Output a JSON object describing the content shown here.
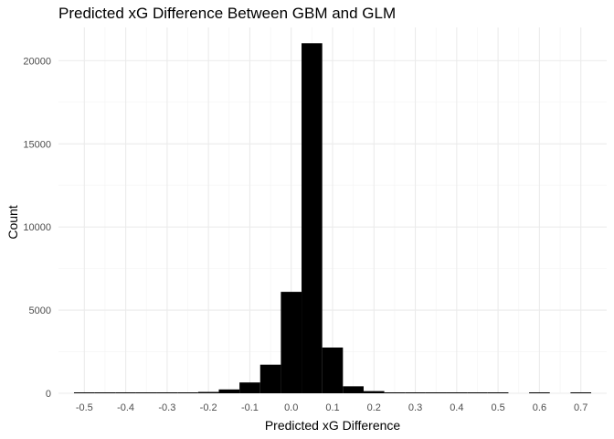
{
  "chart_data": {
    "type": "bar",
    "title": "Predicted xG Difference Between GBM and GLM",
    "xlabel": "Predicted xG Difference",
    "ylabel": "Count",
    "xlim": [
      -0.5625,
      0.7625
    ],
    "ylim": [
      0,
      22000
    ],
    "x_ticks": [
      -0.5,
      -0.4,
      -0.3,
      -0.2,
      -0.1,
      0.0,
      0.1,
      0.2,
      0.3,
      0.4,
      0.5,
      0.6,
      0.7
    ],
    "x_tick_labels": [
      "-0.5",
      "-0.4",
      "-0.3",
      "-0.2",
      "-0.1",
      "0.0",
      "0.1",
      "0.2",
      "0.3",
      "0.4",
      "0.5",
      "0.6",
      "0.7"
    ],
    "y_ticks": [
      0,
      5000,
      10000,
      15000,
      20000
    ],
    "y_tick_labels": [
      "0",
      "5000",
      "10000",
      "15000",
      "20000"
    ],
    "grid": true,
    "bin_width": 0.05,
    "bins": [
      {
        "x0": -0.525,
        "x1": -0.475,
        "count": 5
      },
      {
        "x0": -0.475,
        "x1": -0.425,
        "count": 5
      },
      {
        "x0": -0.425,
        "x1": -0.375,
        "count": 5
      },
      {
        "x0": -0.375,
        "x1": -0.325,
        "count": 5
      },
      {
        "x0": -0.325,
        "x1": -0.275,
        "count": 10
      },
      {
        "x0": -0.275,
        "x1": -0.225,
        "count": 15
      },
      {
        "x0": -0.225,
        "x1": -0.175,
        "count": 80
      },
      {
        "x0": -0.175,
        "x1": -0.125,
        "count": 230
      },
      {
        "x0": -0.125,
        "x1": -0.075,
        "count": 650
      },
      {
        "x0": -0.075,
        "x1": -0.025,
        "count": 1720
      },
      {
        "x0": -0.025,
        "x1": 0.025,
        "count": 6100
      },
      {
        "x0": 0.025,
        "x1": 0.075,
        "count": 21050
      },
      {
        "x0": 0.075,
        "x1": 0.125,
        "count": 2750
      },
      {
        "x0": 0.125,
        "x1": 0.175,
        "count": 420
      },
      {
        "x0": 0.175,
        "x1": 0.225,
        "count": 130
      },
      {
        "x0": 0.225,
        "x1": 0.275,
        "count": 30
      },
      {
        "x0": 0.275,
        "x1": 0.325,
        "count": 15
      },
      {
        "x0": 0.325,
        "x1": 0.375,
        "count": 10
      },
      {
        "x0": 0.375,
        "x1": 0.425,
        "count": 8
      },
      {
        "x0": 0.425,
        "x1": 0.475,
        "count": 6
      },
      {
        "x0": 0.475,
        "x1": 0.525,
        "count": 5
      },
      {
        "x0": 0.575,
        "x1": 0.625,
        "count": 5
      },
      {
        "x0": 0.675,
        "x1": 0.725,
        "count": 5
      }
    ]
  }
}
